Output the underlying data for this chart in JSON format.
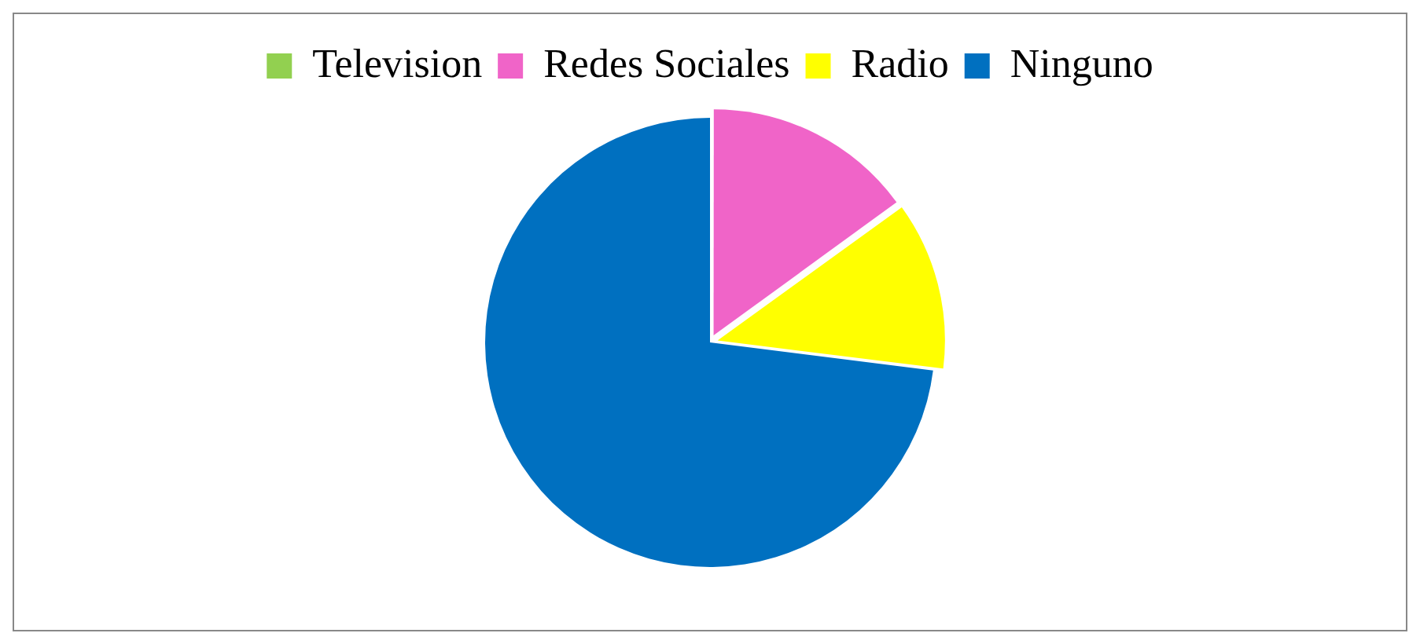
{
  "chart_data": {
    "type": "pie",
    "categories": [
      "Television",
      "Redes Sociales",
      "Radio",
      "Ninguno"
    ],
    "values": [
      0,
      15,
      12,
      73
    ],
    "colors": [
      "#92d050",
      "#f064c8",
      "#ffff00",
      "#0070c0"
    ],
    "legend": "top"
  }
}
